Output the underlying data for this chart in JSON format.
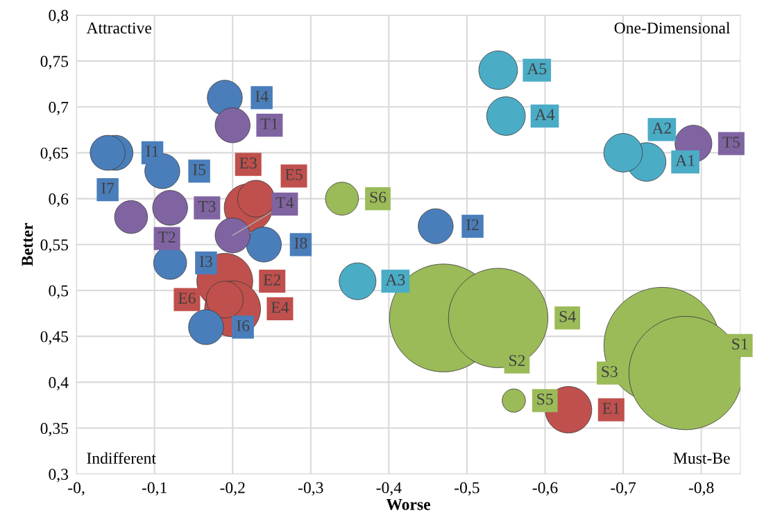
{
  "chart_data": {
    "type": "bubble",
    "xlabel": "Worse",
    "ylabel": "Better",
    "xlim": [
      0,
      -0.85
    ],
    "ylim": [
      0.3,
      0.8
    ],
    "xticks": [
      {
        "value": 0,
        "label": "-0,"
      },
      {
        "value": -0.1,
        "label": "-0,1"
      },
      {
        "value": -0.2,
        "label": "-0,2"
      },
      {
        "value": -0.3,
        "label": "-0,3"
      },
      {
        "value": -0.4,
        "label": "-0,4"
      },
      {
        "value": -0.5,
        "label": "-0,5"
      },
      {
        "value": -0.6,
        "label": "-0,6"
      },
      {
        "value": -0.7,
        "label": "-0,7"
      },
      {
        "value": -0.8,
        "label": "-0,8"
      }
    ],
    "yticks": [
      {
        "value": 0.3,
        "label": "0,3"
      },
      {
        "value": 0.35,
        "label": "0,35"
      },
      {
        "value": 0.4,
        "label": "0,4"
      },
      {
        "value": 0.45,
        "label": "0,45"
      },
      {
        "value": 0.5,
        "label": "0,5"
      },
      {
        "value": 0.55,
        "label": "0,55"
      },
      {
        "value": 0.6,
        "label": "0,6"
      },
      {
        "value": 0.65,
        "label": "0,65"
      },
      {
        "value": 0.7,
        "label": "0,7"
      },
      {
        "value": 0.75,
        "label": "0,75"
      },
      {
        "value": 0.8,
        "label": "0,8"
      }
    ],
    "grid": true,
    "annotations": [
      "Attractive",
      "One-Dimensional",
      "Indifferent",
      "Must-Be"
    ],
    "series": [
      {
        "color": "#4a7ebb",
        "x": [
          -0.05,
          -0.46,
          -0.12,
          -0.19,
          -0.11,
          -0.166,
          -0.04,
          -0.24
        ],
        "values": [
          0.65,
          0.57,
          0.53,
          0.71,
          0.63,
          0.46,
          0.65,
          0.55
        ],
        "sizes": [
          0.09,
          0.09,
          0.08,
          0.09,
          0.09,
          0.09,
          0.09,
          0.09
        ],
        "value_labels": [
          "I1",
          "I2",
          "I3",
          "I4",
          "I5",
          "I6",
          "I7",
          "I8"
        ]
      },
      {
        "color": "#8064a2",
        "x": [
          -0.2,
          -0.07,
          -0.12,
          -0.2,
          -0.79
        ],
        "values": [
          0.68,
          0.58,
          0.59,
          0.56,
          0.66
        ],
        "sizes": [
          0.09,
          0.08,
          0.09,
          0.09,
          0.1
        ],
        "value_labels": [
          "T1",
          "T2",
          "T3",
          "T4",
          "T5"
        ]
      },
      {
        "color": "#c0504d",
        "x": [
          -0.63,
          -0.19,
          -0.22,
          -0.2,
          -0.23,
          -0.19
        ],
        "values": [
          0.37,
          0.51,
          0.59,
          0.48,
          0.6,
          0.49
        ],
        "sizes": [
          0.16,
          0.23,
          0.17,
          0.23,
          0.1,
          0.1
        ],
        "value_labels": [
          "E1",
          "E2",
          "E3",
          "E4",
          "E5",
          "E6"
        ]
      },
      {
        "color": "#4bacc6",
        "x": [
          -0.73,
          -0.7,
          -0.36,
          -0.55,
          -0.54
        ],
        "values": [
          0.64,
          0.65,
          0.51,
          0.69,
          0.74
        ],
        "sizes": [
          0.11,
          0.11,
          0.1,
          0.11,
          0.11
        ],
        "value_labels": [
          "A1",
          "A2",
          "A3",
          "A4",
          "A5"
        ]
      },
      {
        "color": "#9bbb59",
        "x": [
          -0.75,
          -0.47,
          -0.78,
          -0.54,
          -0.56,
          -0.34
        ],
        "values": [
          0.44,
          0.47,
          0.41,
          0.47,
          0.38,
          0.6
        ],
        "sizes": [
          1,
          0.86,
          0.95,
          0.73,
          0.04,
          0.08
        ],
        "value_labels": [
          "S1",
          "S2",
          "S3",
          "S4",
          "S5",
          "S6"
        ]
      }
    ]
  }
}
